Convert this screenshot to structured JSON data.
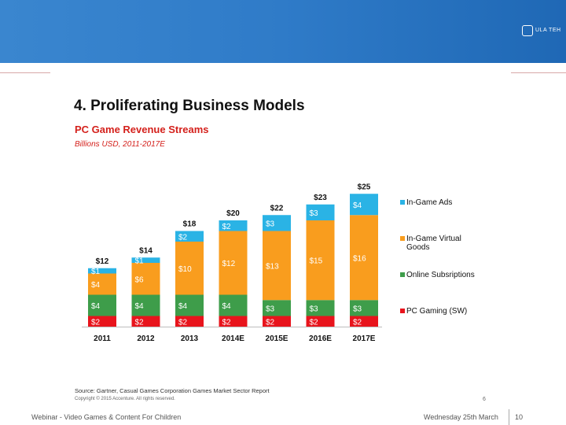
{
  "header": {
    "logo_text": "ULA TEH",
    "banner_color": "#2f7bc8"
  },
  "slide": {
    "title": "4. Proliferating Business Models",
    "chart_title": "PC Game Revenue Streams",
    "chart_subtitle": "Billions USD, 2011-2017E",
    "source": "Source: Gartner, Casual Games Corporation Games Market Sector Report",
    "copyright": "Copyright © 2015 Accenture. All rights reserved.",
    "slide_number": "6"
  },
  "footer": {
    "left_text": "Webinar - Video Games & Content For Children",
    "date": "Wednesday 25th March",
    "page": "10"
  },
  "chart_data": {
    "type": "bar",
    "stacked": true,
    "categories": [
      "2011",
      "2012",
      "2013",
      "2014E",
      "2015E",
      "2016E",
      "2017E"
    ],
    "series": [
      {
        "name": "PC Gaming (SW)",
        "color": "#e8141c",
        "values": [
          2,
          2,
          2,
          2,
          2,
          2,
          2
        ],
        "labels": [
          "$2",
          "$2",
          "$2",
          "$2",
          "$2",
          "$2",
          "$2"
        ]
      },
      {
        "name": "Online Subsriptions",
        "color": "#3e9d4a",
        "values": [
          4,
          4,
          4,
          4,
          3,
          3,
          3
        ],
        "labels": [
          "$4",
          "$4",
          "$4",
          "$4",
          "$3",
          "$3",
          "$3"
        ]
      },
      {
        "name": "In-Game Virtual Goods",
        "color": "#f99d1e",
        "values": [
          4,
          6,
          10,
          12,
          13,
          15,
          16
        ],
        "labels": [
          "$4",
          "$6",
          "$10",
          "$12",
          "$13",
          "$15",
          "$16"
        ]
      },
      {
        "name": "In-Game Ads",
        "color": "#2ab3e5",
        "values": [
          1,
          1,
          2,
          2,
          3,
          3,
          4
        ],
        "labels": [
          "$1",
          "$1",
          "$2",
          "$2",
          "$3",
          "$3",
          "$4"
        ]
      }
    ],
    "totals": [
      "$12",
      "$14",
      "$18",
      "$20",
      "$22",
      "$23",
      "$25"
    ],
    "legend": [
      {
        "name": "In-Game Ads",
        "color": "#2ab3e5",
        "lines": [
          "In-Game Ads"
        ]
      },
      {
        "name": "In-Game Virtual Goods",
        "color": "#f99d1e",
        "lines": [
          "In-Game Virtual",
          "Goods"
        ]
      },
      {
        "name": "Online Subsriptions",
        "color": "#3e9d4a",
        "lines": [
          "Online Subsriptions"
        ]
      },
      {
        "name": "PC Gaming (SW)",
        "color": "#e8141c",
        "lines": [
          "PC Gaming (SW)"
        ]
      }
    ],
    "legend_position": "right",
    "title": "PC Game Revenue Streams",
    "subtitle": "Billions USD, 2011-2017E",
    "grid": false
  }
}
